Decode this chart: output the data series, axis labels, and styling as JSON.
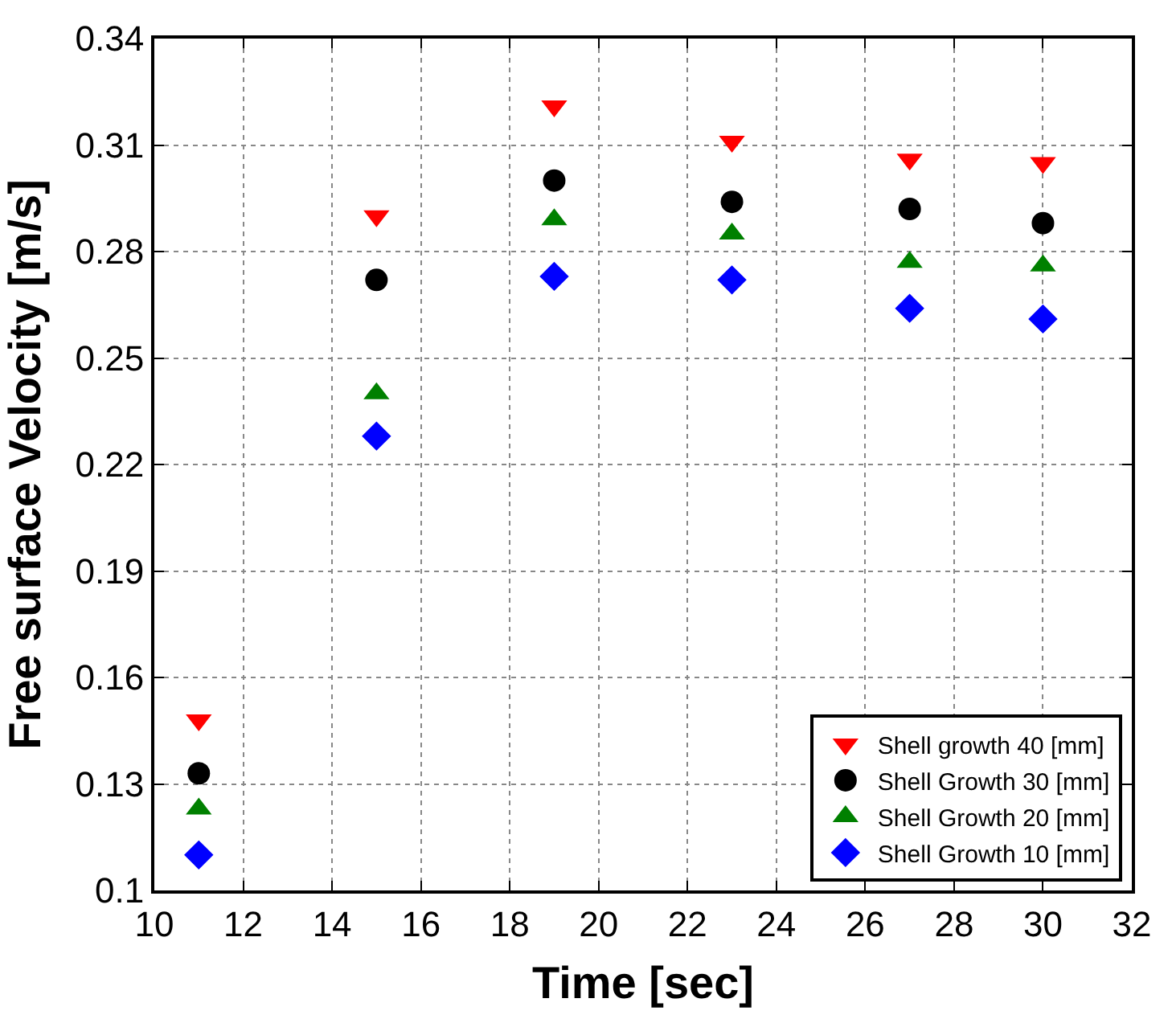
{
  "chart_data": {
    "type": "scatter",
    "xlabel": "Time [sec]",
    "ylabel": "Free surface Velocity [m/s]",
    "x": [
      11,
      15,
      19,
      23,
      27,
      30
    ],
    "series": [
      {
        "name": "Shell growth 40 [mm]",
        "color": "#ff0000",
        "marker": "triangle-down",
        "values": [
          0.148,
          0.29,
          0.321,
          0.311,
          0.306,
          0.305
        ]
      },
      {
        "name": "Shell Growth 30 [mm]",
        "color": "#000000",
        "marker": "circle",
        "values": [
          0.133,
          0.272,
          0.3,
          0.294,
          0.292,
          0.288
        ]
      },
      {
        "name": "Shell Growth 20 [mm]",
        "color": "#008000",
        "marker": "triangle",
        "values": [
          0.123,
          0.24,
          0.289,
          0.285,
          0.277,
          0.276
        ]
      },
      {
        "name": "Shell Growth 10 [mm]",
        "color": "#0000ff",
        "marker": "diamond",
        "values": [
          0.11,
          0.228,
          0.273,
          0.272,
          0.264,
          0.261
        ]
      }
    ],
    "xlim": [
      10,
      32
    ],
    "xticks": [
      10,
      12,
      14,
      16,
      18,
      20,
      22,
      24,
      26,
      28,
      30,
      32
    ],
    "ylim": [
      0.1,
      0.34
    ],
    "yticks": [
      {
        "value": 0.1,
        "label": "0.1"
      },
      0.13,
      0.16,
      0.19,
      0.22,
      0.25,
      0.28,
      0.31,
      0.34
    ],
    "grid": true,
    "legend": "bottom right"
  }
}
